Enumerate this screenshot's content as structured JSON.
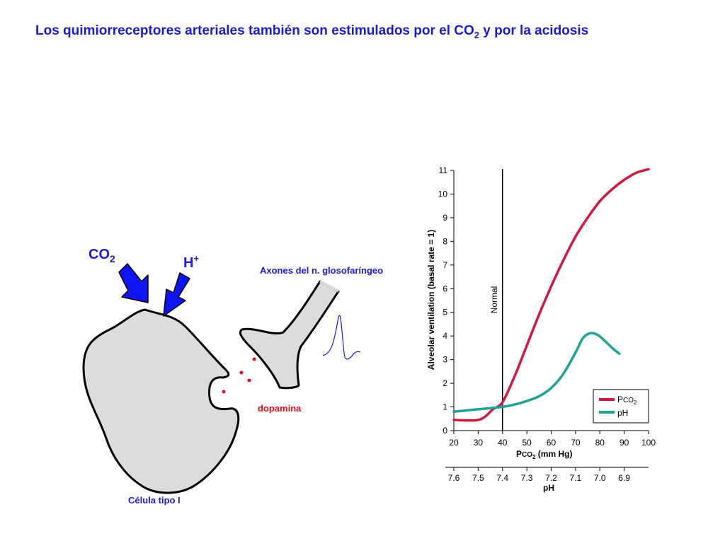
{
  "slide": {
    "title_main": "Los quimiorreceptores arteriales también son estimulados por el CO",
    "title_sub": "2",
    "title_rest": " y por la acidosis"
  },
  "diagram": {
    "co2_label": "CO",
    "co2_sub": "2",
    "h_label": "H",
    "h_sup": "+",
    "axon_label": "Axones del n. glosofaríngeo",
    "dopamine_label": "dopamina",
    "cell_label": "Célula tipo I",
    "colors": {
      "arrow": "#0f15f2",
      "label_blue": "#1a1adf",
      "dopamine": "#e2101a",
      "cell_fill": "#dcdcdc"
    }
  },
  "chart_data": {
    "type": "line",
    "xlabel_main": "P",
    "xlabel_small": "CO",
    "xlabel_sub": "2",
    "xlabel_rest": " (mm Hg)",
    "ylabel": "Alveolar ventilation (basal rate = 1)",
    "x_ticks": [
      20,
      30,
      40,
      50,
      60,
      70,
      80,
      90,
      100
    ],
    "y_ticks": [
      0,
      1,
      2,
      3,
      4,
      5,
      6,
      7,
      8,
      9,
      10,
      11
    ],
    "xlim": [
      20,
      100
    ],
    "ylim": [
      0,
      11
    ],
    "secondary_axis": {
      "label": "pH",
      "ticks": [
        {
          "label": "7.6",
          "at": 20
        },
        {
          "label": "7.5",
          "at": 30
        },
        {
          "label": "7.4",
          "at": 40
        },
        {
          "label": "7.3",
          "at": 50
        },
        {
          "label": "7.2",
          "at": 60
        },
        {
          "label": "7.1",
          "at": 70
        },
        {
          "label": "7.0",
          "at": 80
        },
        {
          "label": "6.9",
          "at": 90
        }
      ]
    },
    "reference_line": {
      "x": 40,
      "label": "Normal"
    },
    "legend_position": "bottom-right",
    "series": [
      {
        "name_main": "P",
        "name_small": "CO",
        "name_sub": "2",
        "color": "#d4183c",
        "points": [
          [
            20,
            0.45
          ],
          [
            25,
            0.43
          ],
          [
            30,
            0.45
          ],
          [
            33,
            0.6
          ],
          [
            36,
            0.9
          ],
          [
            40,
            1.2
          ],
          [
            45,
            2.3
          ],
          [
            50,
            3.6
          ],
          [
            55,
            4.9
          ],
          [
            60,
            6.1
          ],
          [
            65,
            7.2
          ],
          [
            70,
            8.2
          ],
          [
            75,
            9.0
          ],
          [
            80,
            9.7
          ],
          [
            85,
            10.2
          ],
          [
            90,
            10.6
          ],
          [
            95,
            10.9
          ],
          [
            100,
            11.05
          ]
        ]
      },
      {
        "name": "pH",
        "color": "#1fa196",
        "points": [
          [
            20,
            0.8
          ],
          [
            25,
            0.85
          ],
          [
            30,
            0.9
          ],
          [
            35,
            0.95
          ],
          [
            40,
            1.0
          ],
          [
            45,
            1.1
          ],
          [
            50,
            1.25
          ],
          [
            55,
            1.45
          ],
          [
            60,
            1.8
          ],
          [
            65,
            2.4
          ],
          [
            70,
            3.3
          ],
          [
            73,
            3.9
          ],
          [
            76,
            4.12
          ],
          [
            79,
            4.05
          ],
          [
            82,
            3.8
          ],
          [
            85,
            3.5
          ],
          [
            88,
            3.25
          ]
        ]
      }
    ]
  }
}
